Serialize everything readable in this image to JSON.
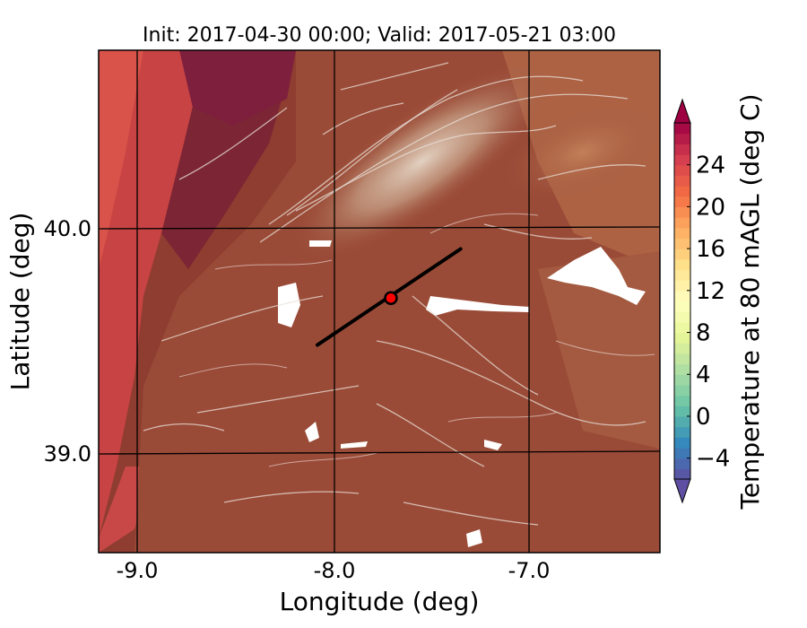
{
  "title": "Init: 2017-04-30 00:00; Valid: 2017-05-21 03:00",
  "xlabel": "Longitude (deg)",
  "ylabel": "Latitude (deg)",
  "x_ticks": [
    "-9.0",
    "-8.0",
    "-7.0"
  ],
  "y_ticks": [
    "40.0",
    "39.0"
  ],
  "colorbar": {
    "label": "Temperature at 80 mAGL (deg C)",
    "ticks": [
      "24",
      "20",
      "16",
      "12",
      "8",
      "4",
      "0",
      "−4"
    ]
  },
  "chart_data": {
    "type": "heatmap",
    "xlim": [
      -9.25,
      -6.35
    ],
    "ylim": [
      38.55,
      40.8
    ],
    "x_tick_values": [
      -9.0,
      -8.0,
      -7.0
    ],
    "y_tick_values": [
      40.0,
      39.0
    ],
    "colorbar_ticks": [
      24,
      20,
      16,
      12,
      8,
      4,
      0,
      -4
    ],
    "colorbar_range": [
      -6,
      28
    ],
    "cross_section_line": {
      "start": [
        -8.12,
        39.48
      ],
      "end": [
        -7.38,
        39.91
      ]
    },
    "marker": {
      "lon": -7.74,
      "lat": 39.69,
      "color": "#ff0000"
    },
    "gridlines": true,
    "colormap": "Spectral_r"
  }
}
